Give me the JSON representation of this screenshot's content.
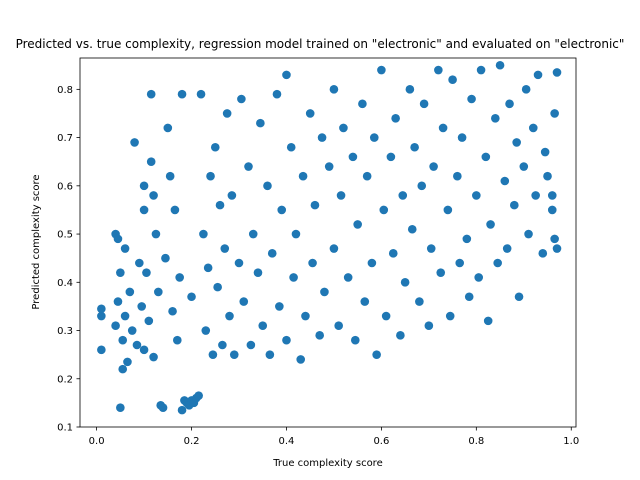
{
  "chart_data": {
    "type": "scatter",
    "title": "Predicted vs. true complexity, regression model trained on \"electronic\" and evaluated on \"electronic\"",
    "xlabel": "True complexity score",
    "ylabel": "Predicted complexity score",
    "xlim": [
      -0.035,
      1.01
    ],
    "ylim": [
      0.1,
      0.865
    ],
    "xticks": [
      0.0,
      0.2,
      0.4,
      0.6,
      0.8,
      1.0
    ],
    "xtick_labels": [
      "0.0",
      "0.2",
      "0.4",
      "0.6",
      "0.8",
      "1.0"
    ],
    "yticks": [
      0.1,
      0.2,
      0.3,
      0.4,
      0.5,
      0.6,
      0.7,
      0.8
    ],
    "ytick_labels": [
      "0.1",
      "0.2",
      "0.3",
      "0.4",
      "0.5",
      "0.6",
      "0.7",
      "0.8"
    ],
    "grid": false,
    "legend": "none",
    "marker_color": "#1f77b4",
    "series": [
      {
        "points": [
          [
            0.01,
            0.26
          ],
          [
            0.01,
            0.33
          ],
          [
            0.01,
            0.345
          ],
          [
            0.04,
            0.5
          ],
          [
            0.045,
            0.49
          ],
          [
            0.05,
            0.42
          ],
          [
            0.05,
            0.14
          ],
          [
            0.055,
            0.22
          ],
          [
            0.06,
            0.33
          ],
          [
            0.065,
            0.235
          ],
          [
            0.04,
            0.31
          ],
          [
            0.045,
            0.36
          ],
          [
            0.055,
            0.28
          ],
          [
            0.06,
            0.47
          ],
          [
            0.07,
            0.38
          ],
          [
            0.075,
            0.3
          ],
          [
            0.08,
            0.69
          ],
          [
            0.085,
            0.27
          ],
          [
            0.09,
            0.44
          ],
          [
            0.095,
            0.35
          ],
          [
            0.1,
            0.6
          ],
          [
            0.1,
            0.55
          ],
          [
            0.1,
            0.26
          ],
          [
            0.105,
            0.42
          ],
          [
            0.11,
            0.32
          ],
          [
            0.115,
            0.79
          ],
          [
            0.115,
            0.65
          ],
          [
            0.12,
            0.58
          ],
          [
            0.12,
            0.245
          ],
          [
            0.125,
            0.5
          ],
          [
            0.13,
            0.38
          ],
          [
            0.135,
            0.145
          ],
          [
            0.14,
            0.14
          ],
          [
            0.145,
            0.45
          ],
          [
            0.15,
            0.72
          ],
          [
            0.155,
            0.62
          ],
          [
            0.16,
            0.34
          ],
          [
            0.165,
            0.55
          ],
          [
            0.17,
            0.28
          ],
          [
            0.175,
            0.41
          ],
          [
            0.18,
            0.79
          ],
          [
            0.18,
            0.135
          ],
          [
            0.185,
            0.155
          ],
          [
            0.19,
            0.15
          ],
          [
            0.195,
            0.145
          ],
          [
            0.2,
            0.37
          ],
          [
            0.2,
            0.155
          ],
          [
            0.205,
            0.15
          ],
          [
            0.21,
            0.16
          ],
          [
            0.215,
            0.165
          ],
          [
            0.22,
            0.79
          ],
          [
            0.225,
            0.5
          ],
          [
            0.23,
            0.3
          ],
          [
            0.235,
            0.43
          ],
          [
            0.24,
            0.62
          ],
          [
            0.245,
            0.25
          ],
          [
            0.25,
            0.68
          ],
          [
            0.255,
            0.39
          ],
          [
            0.26,
            0.56
          ],
          [
            0.265,
            0.27
          ],
          [
            0.27,
            0.47
          ],
          [
            0.275,
            0.75
          ],
          [
            0.28,
            0.33
          ],
          [
            0.285,
            0.58
          ],
          [
            0.29,
            0.25
          ],
          [
            0.3,
            0.44
          ],
          [
            0.305,
            0.78
          ],
          [
            0.31,
            0.36
          ],
          [
            0.32,
            0.64
          ],
          [
            0.325,
            0.27
          ],
          [
            0.33,
            0.5
          ],
          [
            0.34,
            0.42
          ],
          [
            0.345,
            0.73
          ],
          [
            0.35,
            0.31
          ],
          [
            0.36,
            0.6
          ],
          [
            0.365,
            0.25
          ],
          [
            0.37,
            0.46
          ],
          [
            0.38,
            0.79
          ],
          [
            0.385,
            0.35
          ],
          [
            0.39,
            0.55
          ],
          [
            0.4,
            0.83
          ],
          [
            0.4,
            0.28
          ],
          [
            0.41,
            0.68
          ],
          [
            0.415,
            0.41
          ],
          [
            0.42,
            0.5
          ],
          [
            0.43,
            0.24
          ],
          [
            0.435,
            0.62
          ],
          [
            0.44,
            0.33
          ],
          [
            0.45,
            0.75
          ],
          [
            0.455,
            0.44
          ],
          [
            0.46,
            0.56
          ],
          [
            0.47,
            0.29
          ],
          [
            0.475,
            0.7
          ],
          [
            0.48,
            0.38
          ],
          [
            0.49,
            0.64
          ],
          [
            0.5,
            0.47
          ],
          [
            0.5,
            0.8
          ],
          [
            0.51,
            0.31
          ],
          [
            0.515,
            0.58
          ],
          [
            0.52,
            0.72
          ],
          [
            0.53,
            0.41
          ],
          [
            0.54,
            0.66
          ],
          [
            0.545,
            0.28
          ],
          [
            0.55,
            0.52
          ],
          [
            0.56,
            0.77
          ],
          [
            0.565,
            0.36
          ],
          [
            0.57,
            0.62
          ],
          [
            0.58,
            0.44
          ],
          [
            0.585,
            0.7
          ],
          [
            0.59,
            0.25
          ],
          [
            0.6,
            0.84
          ],
          [
            0.605,
            0.55
          ],
          [
            0.61,
            0.33
          ],
          [
            0.62,
            0.66
          ],
          [
            0.625,
            0.46
          ],
          [
            0.63,
            0.74
          ],
          [
            0.64,
            0.29
          ],
          [
            0.645,
            0.58
          ],
          [
            0.65,
            0.4
          ],
          [
            0.66,
            0.8
          ],
          [
            0.665,
            0.51
          ],
          [
            0.67,
            0.68
          ],
          [
            0.68,
            0.36
          ],
          [
            0.685,
            0.6
          ],
          [
            0.69,
            0.77
          ],
          [
            0.7,
            0.31
          ],
          [
            0.705,
            0.47
          ],
          [
            0.71,
            0.64
          ],
          [
            0.72,
            0.84
          ],
          [
            0.725,
            0.42
          ],
          [
            0.73,
            0.72
          ],
          [
            0.74,
            0.55
          ],
          [
            0.745,
            0.33
          ],
          [
            0.75,
            0.82
          ],
          [
            0.76,
            0.62
          ],
          [
            0.765,
            0.44
          ],
          [
            0.77,
            0.7
          ],
          [
            0.78,
            0.49
          ],
          [
            0.785,
            0.37
          ],
          [
            0.79,
            0.78
          ],
          [
            0.8,
            0.58
          ],
          [
            0.805,
            0.41
          ],
          [
            0.81,
            0.84
          ],
          [
            0.82,
            0.66
          ],
          [
            0.825,
            0.32
          ],
          [
            0.83,
            0.52
          ],
          [
            0.84,
            0.74
          ],
          [
            0.845,
            0.44
          ],
          [
            0.85,
            0.85
          ],
          [
            0.86,
            0.61
          ],
          [
            0.865,
            0.47
          ],
          [
            0.87,
            0.77
          ],
          [
            0.88,
            0.56
          ],
          [
            0.885,
            0.69
          ],
          [
            0.89,
            0.37
          ],
          [
            0.9,
            0.64
          ],
          [
            0.905,
            0.8
          ],
          [
            0.91,
            0.5
          ],
          [
            0.92,
            0.72
          ],
          [
            0.925,
            0.58
          ],
          [
            0.93,
            0.83
          ],
          [
            0.94,
            0.46
          ],
          [
            0.945,
            0.67
          ],
          [
            0.95,
            0.62
          ],
          [
            0.96,
            0.55
          ],
          [
            0.965,
            0.75
          ],
          [
            0.965,
            0.49
          ],
          [
            0.97,
            0.835
          ],
          [
            0.97,
            0.47
          ],
          [
            0.96,
            0.58
          ]
        ]
      }
    ]
  }
}
